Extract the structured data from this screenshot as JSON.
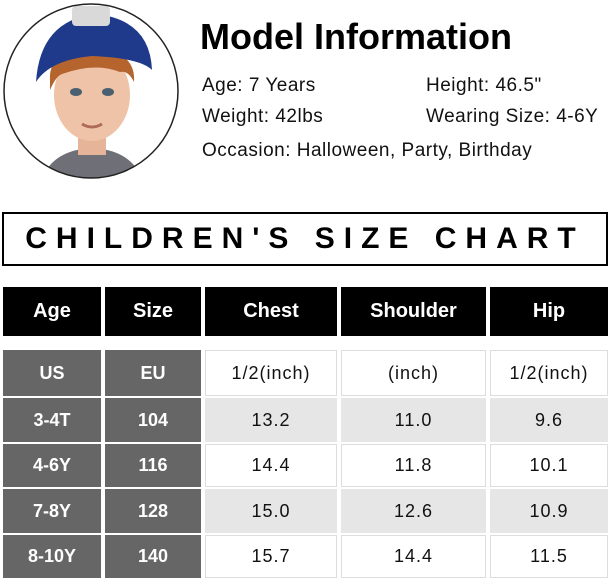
{
  "model_info": {
    "title": "Model Information",
    "lines": [
      [
        "Age: 7 Years",
        "Height: 46.5\""
      ],
      [
        "Weight: 42lbs",
        "Wearing Size: 4-6Y"
      ],
      [
        "Occasion: Halloween, Party, Birthday"
      ]
    ]
  },
  "chart_title": "CHILDREN'S SIZE CHART",
  "table": {
    "header": [
      "Age",
      "Size",
      "Chest",
      "Shoulder",
      "Hip"
    ],
    "rows": [
      [
        "US",
        "EU",
        "1/2(inch)",
        "(inch)",
        "1/2(inch)"
      ],
      [
        "3-4T",
        "104",
        "13.2",
        "11.0",
        "9.6"
      ],
      [
        "4-6Y",
        "116",
        "14.4",
        "11.8",
        "10.1"
      ],
      [
        "7-8Y",
        "128",
        "15.0",
        "12.6",
        "10.9"
      ],
      [
        "8-10Y",
        "140",
        "15.7",
        "14.4",
        "11.5"
      ]
    ]
  }
}
